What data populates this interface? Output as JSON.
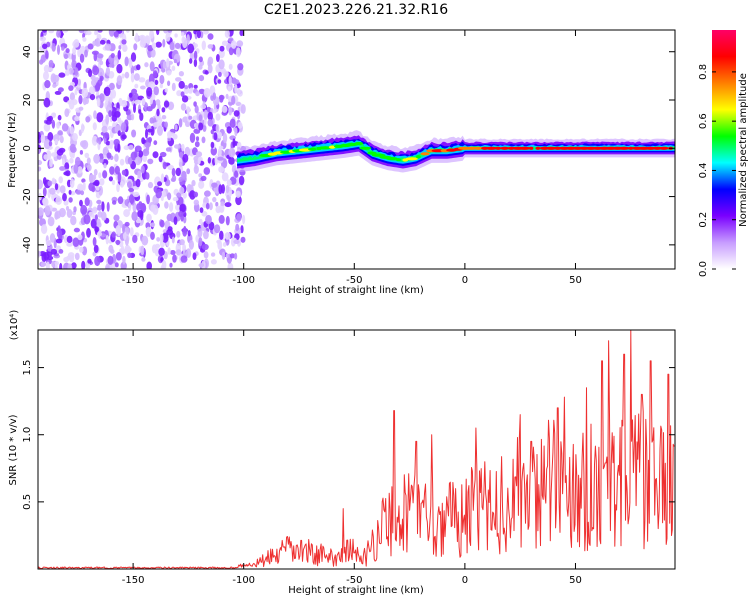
{
  "title": "C2E1.2023.226.21.32.R16",
  "chart_data": [
    {
      "type": "heatmap",
      "xlabel": "Height of straight line (km)",
      "ylabel": "Frequency (Hz)",
      "xlim": [
        -193,
        95
      ],
      "ylim": [
        -50,
        49
      ],
      "xticks": [
        -150,
        -100,
        -50,
        0,
        50
      ],
      "yticks": [
        -40,
        -20,
        0,
        20,
        40
      ],
      "colorbar": {
        "label": "Normalized spectral amplitude",
        "range": [
          0,
          0.97
        ],
        "ticks": [
          0.0,
          0.2,
          0.4,
          0.6,
          0.8
        ],
        "colormap": [
          "#ffffff",
          "#c79cff",
          "#7a00ff",
          "#0000ff",
          "#00ffff",
          "#00ff00",
          "#ffff00",
          "#ff7f00",
          "#ff0000",
          "#ff0066"
        ]
      },
      "ridge": {
        "x": [
          -103,
          -95,
          -85,
          -75,
          -65,
          -55,
          -48,
          -42,
          -35,
          -28,
          -22,
          -15,
          -8,
          0,
          10,
          20,
          30,
          40,
          50,
          60,
          70,
          80,
          95
        ],
        "y": [
          -5,
          -4,
          -2,
          -1,
          0,
          1,
          2,
          -2,
          -4,
          -5,
          -4,
          -1,
          -1,
          0,
          0,
          0,
          0,
          0,
          0,
          0,
          0,
          0,
          0
        ]
      }
    },
    {
      "type": "line",
      "xlabel": "Height of straight line (km)",
      "ylabel": "SNR (10 * v/v)",
      "y_multiplier": "(x10⁴)",
      "xlim": [
        -193,
        95
      ],
      "ylim": [
        0,
        1.78
      ],
      "xticks": [
        -150,
        -100,
        -50,
        0,
        50
      ],
      "yticks": [
        0.5,
        1.0,
        1.5
      ],
      "series": [
        {
          "color": "#ee3030",
          "envelope_x": [
            -193,
            -150,
            -105,
            -95,
            -80,
            -70,
            -60,
            -52,
            -45,
            -38,
            -30,
            -20,
            -10,
            0,
            10,
            20,
            30,
            40,
            50,
            60,
            70,
            80,
            90,
            95
          ],
          "envelope_y": [
            0.01,
            0.01,
            0.01,
            0.05,
            0.2,
            0.18,
            0.12,
            0.2,
            0.12,
            0.45,
            0.55,
            0.65,
            0.5,
            0.6,
            0.65,
            0.75,
            0.85,
            0.9,
            0.88,
            0.9,
            1.0,
            0.95,
            0.85,
            0.9
          ],
          "spikes_x": [
            -55,
            -50,
            -32,
            -22,
            -15,
            -5,
            5,
            25,
            30,
            42,
            45,
            55,
            62,
            65,
            72,
            75,
            80,
            84,
            92
          ],
          "spikes_y": [
            0.45,
            0.12,
            1.18,
            0.95,
            1.0,
            0.55,
            1.05,
            1.15,
            0.95,
            1.2,
            1.28,
            1.35,
            1.55,
            1.7,
            1.6,
            1.78,
            1.3,
            1.55,
            1.45
          ]
        }
      ]
    }
  ]
}
